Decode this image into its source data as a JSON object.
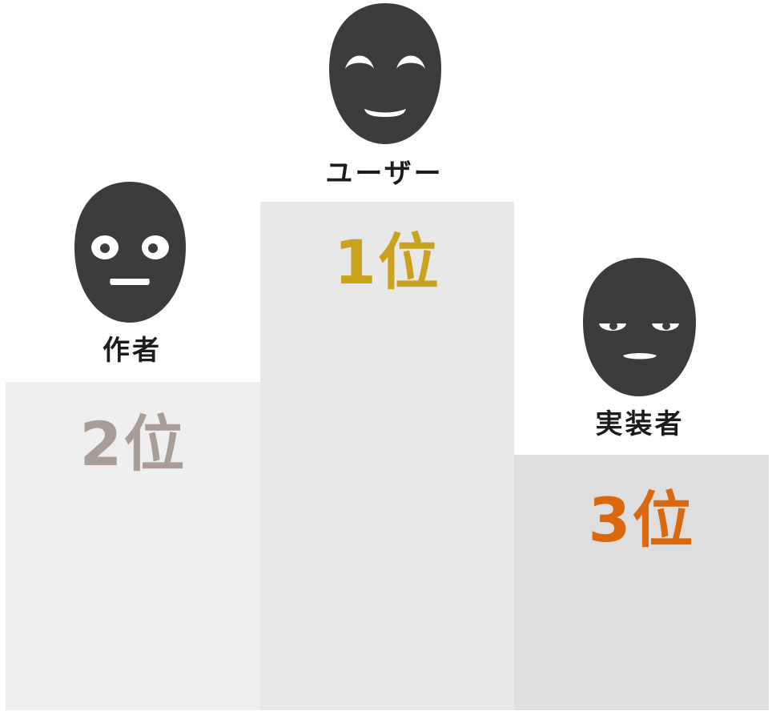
{
  "colors": {
    "mask": "#3e3b3b",
    "first": "#c9a21e",
    "second": "#a89e97",
    "third": "#d9680f",
    "text": "#1c1c1c"
  },
  "podium": {
    "first": {
      "name": "ユーザー",
      "rank": "1位",
      "mask_icon": "smiling-mask-icon"
    },
    "second": {
      "name": "作者",
      "rank": "2位",
      "mask_icon": "surprised-mask-icon"
    },
    "third": {
      "name": "実装者",
      "rank": "3位",
      "mask_icon": "annoyed-mask-icon"
    }
  }
}
